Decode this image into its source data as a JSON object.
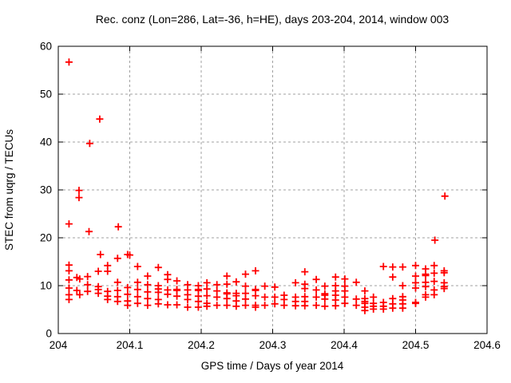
{
  "chart": {
    "title": "Rec. conz (Lon=286, Lat=-36, h=HE), days 203-204, 2014, window 003",
    "xlabel": "GPS time / Days of year 2014",
    "ylabel": "STEC from uqrg / TECUs",
    "marker_color": "#ff0000",
    "grid_color": "#a0a0a0",
    "axis_color": "#000000",
    "background_color": "#ffffff"
  },
  "chart_data": {
    "type": "scatter",
    "marker": "plus",
    "color": "#ff0000",
    "title": "Rec. conz (Lon=286, Lat=-36, h=HE), days 203-204, 2014, window 003",
    "xlabel": "GPS time / Days of year 2014",
    "ylabel": "STEC from uqrg / TECUs",
    "xlim": [
      204,
      204.6
    ],
    "ylim": [
      0,
      60
    ],
    "xticks": [
      204,
      204.1,
      204.2,
      204.3,
      204.4,
      204.5,
      204.6
    ],
    "xtick_labels": [
      "204",
      "204.1",
      "204.2",
      "204.3",
      "204.4",
      "204.5",
      "204.6"
    ],
    "yticks": [
      0,
      10,
      20,
      30,
      40,
      50,
      60
    ],
    "ytick_labels": [
      "0",
      "10",
      "20",
      "30",
      "40",
      "50",
      "60"
    ],
    "grid": true,
    "legend": "none",
    "points": [
      [
        204.015,
        56.7
      ],
      [
        204.058,
        44.8
      ],
      [
        204.044,
        39.7
      ],
      [
        204.029,
        29.9
      ],
      [
        204.029,
        28.4
      ],
      [
        204.541,
        28.7
      ],
      [
        204.015,
        22.9
      ],
      [
        204.084,
        22.3
      ],
      [
        204.043,
        21.3
      ],
      [
        204.527,
        19.5
      ],
      [
        204.059,
        16.5
      ],
      [
        204.097,
        16.5
      ],
      [
        204.1,
        16.4
      ],
      [
        204.083,
        15.7
      ],
      [
        204.015,
        14.3
      ],
      [
        204.015,
        13.1
      ],
      [
        204.015,
        11.2
      ],
      [
        204.015,
        9.5
      ],
      [
        204.015,
        8.1
      ],
      [
        204.015,
        7.1
      ],
      [
        204.026,
        11.7
      ],
      [
        204.026,
        9.0
      ],
      [
        204.03,
        11.4
      ],
      [
        204.03,
        8.1
      ],
      [
        204.041,
        11.9
      ],
      [
        204.041,
        10.2
      ],
      [
        204.041,
        8.8
      ],
      [
        204.056,
        13.0
      ],
      [
        204.056,
        9.8
      ],
      [
        204.056,
        9.2
      ],
      [
        204.056,
        8.4
      ],
      [
        204.069,
        14.2
      ],
      [
        204.069,
        13.0
      ],
      [
        204.069,
        8.8
      ],
      [
        204.069,
        7.8
      ],
      [
        204.069,
        7.1
      ],
      [
        204.083,
        10.7
      ],
      [
        204.083,
        9.0
      ],
      [
        204.083,
        7.7
      ],
      [
        204.083,
        6.7
      ],
      [
        204.097,
        9.6
      ],
      [
        204.097,
        8.2
      ],
      [
        204.097,
        6.8
      ],
      [
        204.097,
        5.9
      ],
      [
        204.111,
        14.0
      ],
      [
        204.111,
        10.7
      ],
      [
        204.111,
        9.2
      ],
      [
        204.111,
        7.7
      ],
      [
        204.111,
        6.3
      ],
      [
        204.125,
        12.0
      ],
      [
        204.125,
        10.2
      ],
      [
        204.125,
        8.7
      ],
      [
        204.125,
        7.3
      ],
      [
        204.125,
        5.9
      ],
      [
        204.14,
        13.8
      ],
      [
        204.14,
        10.0
      ],
      [
        204.14,
        9.3
      ],
      [
        204.14,
        8.6
      ],
      [
        204.14,
        7.1
      ],
      [
        204.14,
        6.2
      ],
      [
        204.153,
        12.3
      ],
      [
        204.153,
        11.3
      ],
      [
        204.153,
        9.1
      ],
      [
        204.153,
        8.2
      ],
      [
        204.153,
        6.0
      ],
      [
        204.166,
        11.0
      ],
      [
        204.166,
        9.2
      ],
      [
        204.166,
        9.0
      ],
      [
        204.166,
        7.8
      ],
      [
        204.166,
        6.0
      ],
      [
        204.181,
        10.2
      ],
      [
        204.181,
        9.1
      ],
      [
        204.181,
        8.1
      ],
      [
        204.181,
        7.1
      ],
      [
        204.181,
        5.5
      ],
      [
        204.196,
        10.0
      ],
      [
        204.196,
        9.2
      ],
      [
        204.196,
        9.0
      ],
      [
        204.196,
        7.8
      ],
      [
        204.196,
        6.7
      ],
      [
        204.196,
        5.5
      ],
      [
        204.208,
        10.6
      ],
      [
        204.208,
        9.3
      ],
      [
        204.208,
        7.9
      ],
      [
        204.208,
        6.3
      ],
      [
        204.208,
        5.7
      ],
      [
        204.222,
        10.2
      ],
      [
        204.222,
        8.9
      ],
      [
        204.222,
        7.6
      ],
      [
        204.222,
        5.9
      ],
      [
        204.236,
        12.0
      ],
      [
        204.236,
        10.3
      ],
      [
        204.236,
        8.5
      ],
      [
        204.236,
        8.3
      ],
      [
        204.236,
        7.3
      ],
      [
        204.236,
        5.9
      ],
      [
        204.249,
        10.8
      ],
      [
        204.249,
        8.4
      ],
      [
        204.249,
        7.9
      ],
      [
        204.249,
        6.8
      ],
      [
        204.249,
        5.7
      ],
      [
        204.262,
        12.4
      ],
      [
        204.262,
        9.9
      ],
      [
        204.262,
        8.4
      ],
      [
        204.262,
        7.2
      ],
      [
        204.262,
        5.9
      ],
      [
        204.276,
        13.1
      ],
      [
        204.276,
        9.2
      ],
      [
        204.276,
        9.0
      ],
      [
        204.276,
        7.9
      ],
      [
        204.276,
        5.9
      ],
      [
        204.276,
        5.5
      ],
      [
        204.289,
        9.9
      ],
      [
        204.289,
        7.6
      ],
      [
        204.289,
        5.9
      ],
      [
        204.303,
        9.7
      ],
      [
        204.303,
        7.6
      ],
      [
        204.303,
        6.2
      ],
      [
        204.316,
        8.0
      ],
      [
        204.316,
        7.1
      ],
      [
        204.316,
        5.9
      ],
      [
        204.332,
        10.6
      ],
      [
        204.332,
        7.6
      ],
      [
        204.332,
        6.7
      ],
      [
        204.332,
        5.8
      ],
      [
        204.345,
        12.9
      ],
      [
        204.345,
        10.3
      ],
      [
        204.345,
        9.4
      ],
      [
        204.345,
        7.7
      ],
      [
        204.345,
        6.7
      ],
      [
        204.345,
        5.8
      ],
      [
        204.361,
        11.3
      ],
      [
        204.361,
        9.1
      ],
      [
        204.361,
        7.6
      ],
      [
        204.361,
        5.9
      ],
      [
        204.373,
        9.9
      ],
      [
        204.373,
        8.3
      ],
      [
        204.373,
        8.0
      ],
      [
        204.373,
        7.2
      ],
      [
        204.373,
        5.7
      ],
      [
        204.388,
        11.8
      ],
      [
        204.388,
        10.0
      ],
      [
        204.388,
        8.9
      ],
      [
        204.388,
        8.0
      ],
      [
        204.388,
        7.0
      ],
      [
        204.388,
        5.8
      ],
      [
        204.401,
        11.4
      ],
      [
        204.401,
        9.9
      ],
      [
        204.401,
        8.9
      ],
      [
        204.401,
        7.6
      ],
      [
        204.401,
        6.3
      ],
      [
        204.417,
        10.7
      ],
      [
        204.417,
        7.2
      ],
      [
        204.417,
        5.9
      ],
      [
        204.429,
        8.9
      ],
      [
        204.429,
        7.3
      ],
      [
        204.429,
        6.7
      ],
      [
        204.429,
        6.3
      ],
      [
        204.429,
        5.5
      ],
      [
        204.429,
        4.8
      ],
      [
        204.441,
        7.6
      ],
      [
        204.441,
        6.3
      ],
      [
        204.441,
        5.7
      ],
      [
        204.441,
        5.1
      ],
      [
        204.455,
        14.0
      ],
      [
        204.455,
        6.5
      ],
      [
        204.455,
        5.7
      ],
      [
        204.455,
        5.1
      ],
      [
        204.468,
        13.9
      ],
      [
        204.468,
        11.8
      ],
      [
        204.468,
        7.3
      ],
      [
        204.468,
        6.2
      ],
      [
        204.468,
        5.3
      ],
      [
        204.482,
        13.9
      ],
      [
        204.482,
        10.0
      ],
      [
        204.482,
        7.7
      ],
      [
        204.482,
        7.0
      ],
      [
        204.482,
        6.2
      ],
      [
        204.482,
        5.3
      ],
      [
        204.5,
        14.2
      ],
      [
        204.5,
        12.0
      ],
      [
        204.5,
        10.6
      ],
      [
        204.5,
        9.5
      ],
      [
        204.5,
        6.5
      ],
      [
        204.5,
        6.3
      ],
      [
        204.514,
        13.5
      ],
      [
        204.514,
        12.4
      ],
      [
        204.514,
        12.1
      ],
      [
        204.514,
        10.7
      ],
      [
        204.514,
        9.8
      ],
      [
        204.514,
        8.1
      ],
      [
        204.514,
        7.6
      ],
      [
        204.526,
        14.2
      ],
      [
        204.526,
        12.6
      ],
      [
        204.526,
        10.9
      ],
      [
        204.526,
        9.1
      ],
      [
        204.526,
        8.1
      ],
      [
        204.54,
        13.1
      ],
      [
        204.54,
        12.7
      ],
      [
        204.54,
        10.6
      ],
      [
        204.54,
        9.8
      ],
      [
        204.54,
        9.4
      ]
    ]
  }
}
